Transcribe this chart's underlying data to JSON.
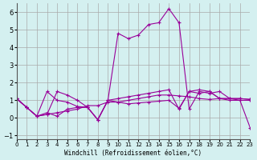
{
  "xlabel": "Windchill (Refroidissement éolien,°C)",
  "ylabel": "",
  "background_color": "#d4f0f0",
  "grid_color": "#aaaaaa",
  "line_color": "#990099",
  "xlim": [
    0,
    23
  ],
  "ylim": [
    -1.2,
    6.5
  ],
  "yticks": [
    -1,
    0,
    1,
    2,
    3,
    4,
    5,
    6
  ],
  "xticks": [
    0,
    1,
    2,
    3,
    4,
    5,
    6,
    7,
    8,
    9,
    10,
    11,
    12,
    13,
    14,
    15,
    16,
    17,
    18,
    19,
    20,
    21,
    22,
    23
  ],
  "series": [
    [
      1.1,
      0.6,
      0.1,
      0.2,
      0.3,
      0.4,
      0.5,
      0.7,
      0.7,
      0.9,
      0.9,
      1.0,
      1.1,
      1.2,
      1.3,
      1.3,
      1.25,
      1.2,
      1.1,
      1.05,
      1.1,
      1.1,
      1.1,
      1.05
    ],
    [
      1.1,
      0.6,
      0.1,
      0.2,
      1.5,
      1.3,
      1.0,
      0.6,
      -0.1,
      1.0,
      0.9,
      0.8,
      0.85,
      0.9,
      0.95,
      1.0,
      0.55,
      1.5,
      1.4,
      1.5,
      1.1,
      1.1,
      1.1,
      1.05
    ],
    [
      1.1,
      0.6,
      0.1,
      0.3,
      0.1,
      0.5,
      0.6,
      0.6,
      -0.1,
      1.0,
      1.1,
      1.2,
      1.3,
      1.4,
      1.5,
      1.6,
      0.5,
      1.5,
      1.6,
      1.5,
      1.1,
      1.0,
      1.0,
      1.0
    ],
    [
      1.1,
      0.6,
      0.1,
      1.5,
      1.0,
      0.9,
      0.65,
      0.6,
      -0.1,
      1.0,
      4.8,
      4.5,
      4.7,
      5.3,
      5.4,
      6.2,
      5.4,
      0.5,
      1.5,
      1.4,
      1.5,
      1.1,
      1.0,
      -0.55
    ]
  ]
}
